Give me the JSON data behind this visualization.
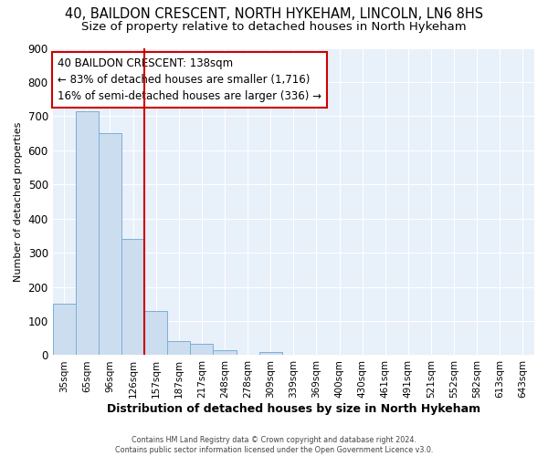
{
  "title1": "40, BAILDON CRESCENT, NORTH HYKEHAM, LINCOLN, LN6 8HS",
  "title2": "Size of property relative to detached houses in North Hykeham",
  "xlabel": "Distribution of detached houses by size in North Hykeham",
  "ylabel": "Number of detached properties",
  "categories": [
    "35sqm",
    "65sqm",
    "96sqm",
    "126sqm",
    "157sqm",
    "187sqm",
    "217sqm",
    "248sqm",
    "278sqm",
    "309sqm",
    "339sqm",
    "369sqm",
    "400sqm",
    "430sqm",
    "461sqm",
    "491sqm",
    "521sqm",
    "552sqm",
    "582sqm",
    "613sqm",
    "643sqm"
  ],
  "values": [
    150,
    715,
    650,
    340,
    130,
    42,
    32,
    14,
    0,
    10,
    0,
    0,
    0,
    0,
    0,
    0,
    0,
    0,
    0,
    0,
    0
  ],
  "bar_color": "#ccddf0",
  "bar_edge_color": "#7bafd4",
  "bar_width": 1.0,
  "vline_x": 3.5,
  "vline_color": "#cc0000",
  "annotation_text": "40 BAILDON CRESCENT: 138sqm\n← 83% of detached houses are smaller (1,716)\n16% of semi-detached houses are larger (336) →",
  "annotation_box_color": "#ffffff",
  "annotation_box_edge": "#cc0000",
  "footnote": "Contains HM Land Registry data © Crown copyright and database right 2024.\nContains public sector information licensed under the Open Government Licence v3.0.",
  "ylim": [
    0,
    900
  ],
  "yticks": [
    0,
    100,
    200,
    300,
    400,
    500,
    600,
    700,
    800,
    900
  ],
  "bg_color": "#e8f0fa",
  "grid_color": "#ffffff",
  "fig_bg": "#ffffff",
  "title1_fontsize": 10.5,
  "title2_fontsize": 9.5,
  "annot_fontsize": 8.5,
  "xlabel_fontsize": 9,
  "ylabel_fontsize": 8
}
